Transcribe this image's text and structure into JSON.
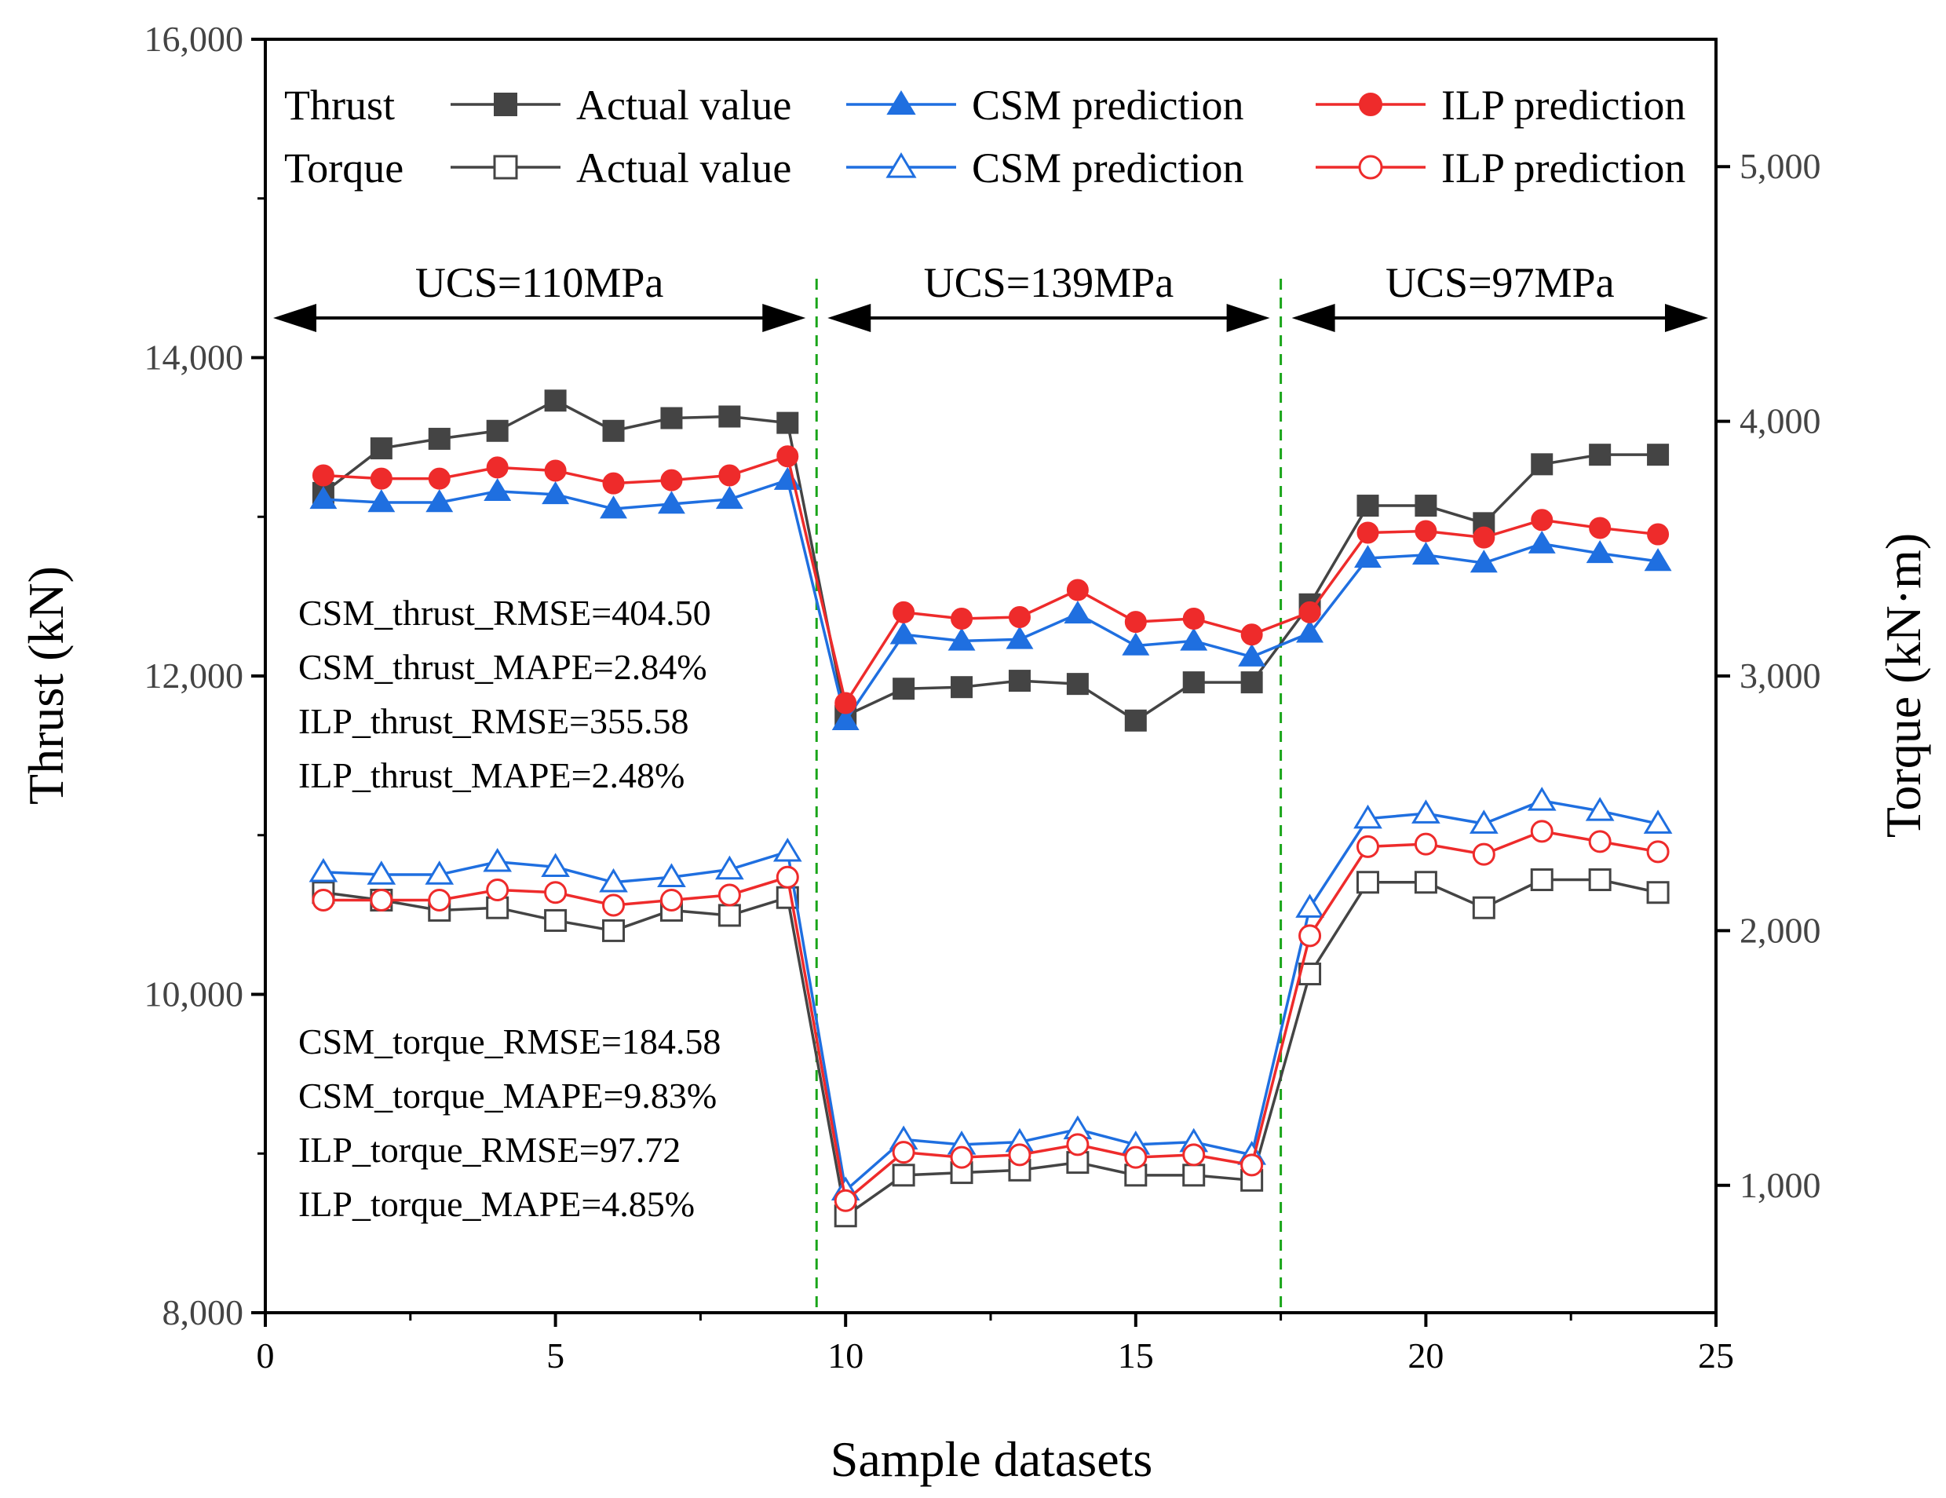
{
  "chart_data": {
    "type": "line",
    "xlabel": "Sample datasets",
    "ylabel": "Thrust (kN)",
    "y2label": "Torque (kN·m)",
    "xlim": [
      0,
      25
    ],
    "ylim": [
      8000,
      16000
    ],
    "y2lim": [
      500,
      5500
    ],
    "xticks": [
      0,
      5,
      10,
      15,
      20,
      25
    ],
    "xtick_labels": [
      "0",
      "5",
      "10",
      "15",
      "20",
      "25"
    ],
    "yticks": [
      8000,
      10000,
      12000,
      14000,
      16000
    ],
    "ytick_labels": [
      "8,000",
      "10,000",
      "12,000",
      "14,000",
      "16,000"
    ],
    "y2ticks": [
      1000,
      2000,
      3000,
      4000,
      5000
    ],
    "y2tick_labels": [
      "1,000",
      "2,000",
      "3,000",
      "4,000",
      "5,000"
    ],
    "x": [
      1,
      2,
      3,
      4,
      5,
      6,
      7,
      8,
      9,
      10,
      11,
      12,
      13,
      14,
      15,
      16,
      17,
      18,
      19,
      20,
      21,
      22,
      23,
      24
    ],
    "series": [
      {
        "name": "Actual value",
        "group": "Thrust",
        "axis": "left",
        "color": "#444444",
        "marker": "square",
        "filled": true,
        "values": [
          13150,
          13430,
          13490,
          13540,
          13730,
          13540,
          13620,
          13630,
          13590,
          11750,
          11920,
          11930,
          11970,
          11950,
          11720,
          11960,
          11960,
          12450,
          13070,
          13070,
          12960,
          13330,
          13390,
          13390
        ]
      },
      {
        "name": "CSM prediction",
        "group": "Thrust",
        "axis": "left",
        "color": "#1f6fe0",
        "marker": "triangle",
        "filled": true,
        "values": [
          13110,
          13090,
          13090,
          13160,
          13140,
          13050,
          13080,
          13110,
          13230,
          11720,
          12260,
          12220,
          12230,
          12390,
          12190,
          12220,
          12120,
          12270,
          12740,
          12760,
          12710,
          12830,
          12770,
          12720
        ]
      },
      {
        "name": "ILP prediction",
        "group": "Thrust",
        "axis": "left",
        "color": "#ee2b2b",
        "marker": "circle",
        "filled": true,
        "values": [
          13260,
          13240,
          13240,
          13310,
          13290,
          13210,
          13230,
          13260,
          13380,
          11830,
          12400,
          12360,
          12370,
          12540,
          12340,
          12360,
          12260,
          12400,
          12900,
          12910,
          12870,
          12980,
          12930,
          12890
        ]
      },
      {
        "name": "Actual value",
        "group": "Torque",
        "axis": "right",
        "color": "#444444",
        "marker": "square",
        "filled": false,
        "values": [
          2150,
          2120,
          2080,
          2090,
          2040,
          2000,
          2080,
          2060,
          2130,
          880,
          1040,
          1050,
          1060,
          1090,
          1040,
          1040,
          1020,
          1830,
          2190,
          2190,
          2090,
          2200,
          2200,
          2150
        ]
      },
      {
        "name": "CSM prediction",
        "group": "Torque",
        "axis": "right",
        "color": "#1f6fe0",
        "marker": "triangle",
        "filled": false,
        "values": [
          2230,
          2220,
          2220,
          2270,
          2250,
          2190,
          2210,
          2240,
          2310,
          980,
          1180,
          1160,
          1170,
          1220,
          1160,
          1170,
          1120,
          2090,
          2440,
          2460,
          2420,
          2510,
          2470,
          2420
        ]
      },
      {
        "name": "ILP prediction",
        "group": "Torque",
        "axis": "right",
        "color": "#ee2b2b",
        "marker": "circle",
        "filled": false,
        "values": [
          2120,
          2120,
          2120,
          2160,
          2150,
          2100,
          2120,
          2140,
          2210,
          940,
          1130,
          1110,
          1120,
          1160,
          1110,
          1120,
          1080,
          1980,
          2330,
          2340,
          2300,
          2390,
          2350,
          2310
        ]
      }
    ],
    "legend": {
      "placement": "top",
      "group_labels": [
        "Thrust",
        "Torque"
      ],
      "entry_labels": [
        "Actual value",
        "CSM prediction",
        "ILP prediction"
      ]
    },
    "dividers": [
      9.5,
      17.5
    ],
    "regions": [
      {
        "label": "UCS=110MPa",
        "from": 0,
        "to": 9.5
      },
      {
        "label": "UCS=139MPa",
        "from": 9.5,
        "to": 17.5
      },
      {
        "label": "UCS=97MPa",
        "from": 17.5,
        "to": 25
      }
    ],
    "annotations": {
      "thrust": [
        "CSM_thrust_RMSE=404.50",
        "CSM_thrust_MAPE=2.84%",
        "ILP_thrust_RMSE=355.58",
        "ILP_thrust_MAPE=2.48%"
      ],
      "torque": [
        "CSM_torque_RMSE=184.58",
        "CSM_torque_MAPE=9.83%",
        "ILP_torque_RMSE=97.72",
        "ILP_torque_MAPE=4.85%"
      ]
    }
  }
}
